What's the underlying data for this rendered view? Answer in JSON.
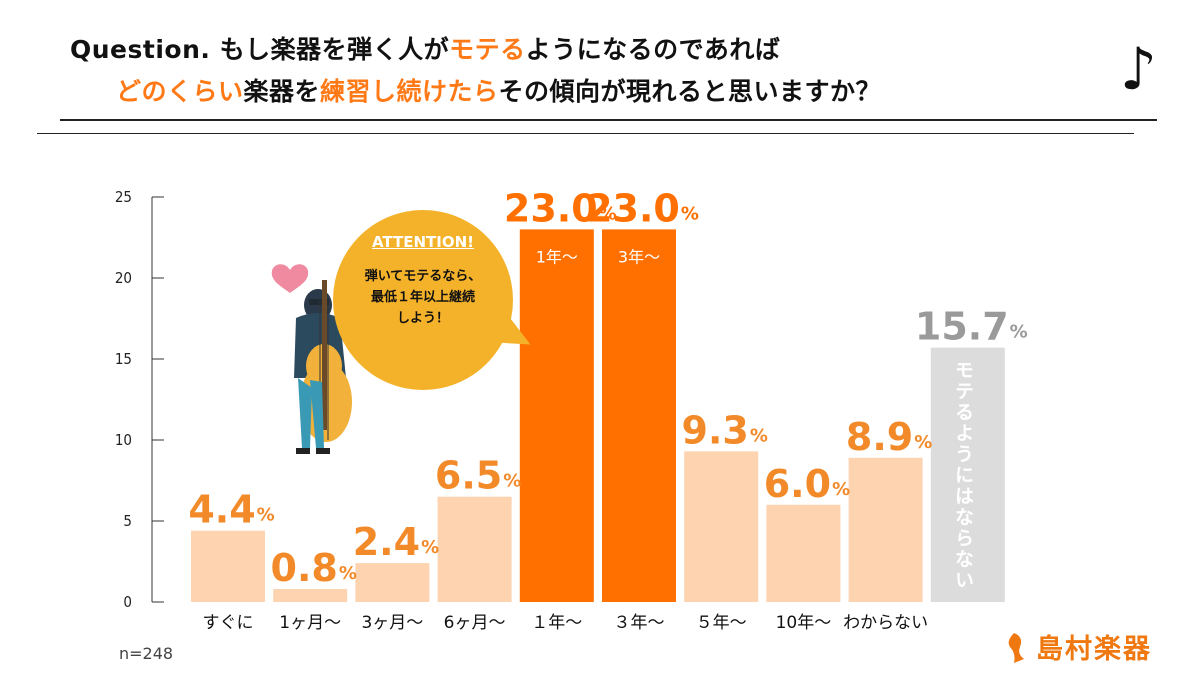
{
  "header": {
    "line1_prefix": "Question.",
    "line1_a": "もし楽器を弾く人が",
    "line1_b": "モテる",
    "line1_c": "ようになるのであれば",
    "line2_a": "どのくらい",
    "line2_b": "楽器を",
    "line2_c": "練習し続けたら",
    "line2_d": "その傾向が現れると思いますか？",
    "note_symbol": "♪"
  },
  "callout": {
    "heading": "ATTENTION!",
    "line1": "弾いてモテるなら、",
    "line2": "最低１年以上継続",
    "line3": "しよう！"
  },
  "footer": {
    "sample_size": "n=248",
    "brand": "島村楽器"
  },
  "colors": {
    "accent": "#ff7a17",
    "highlight_bar": "#ff7000",
    "light_bar": "#fdd3b0",
    "gray_bar": "#dcdcdc",
    "value_text": "#f28a2a",
    "gray_text": "#9a9a9a",
    "bubble": "#f4b22a"
  },
  "chart_data": {
    "type": "bar",
    "title": "どのくらい楽器を練習し続けたらその傾向が現れると思いますか？",
    "categories": [
      "すぐに",
      "1ヶ月〜",
      "3ヶ月〜",
      "6ヶ月〜",
      "１年〜",
      "３年〜",
      "５年〜",
      "10年〜",
      "わからない",
      "モテるようにはならない"
    ],
    "values": [
      4.4,
      0.8,
      2.4,
      6.5,
      23.0,
      23.0,
      9.3,
      6.0,
      8.9,
      15.7
    ],
    "value_labels": [
      "4.4",
      "0.8",
      "2.4",
      "6.5",
      "23.0",
      "23.0",
      "9.3",
      "6.0",
      "8.9",
      "15.7"
    ],
    "percent_sign": "%",
    "bar_styles": [
      "light",
      "light",
      "light",
      "light",
      "highlight",
      "highlight",
      "light",
      "light",
      "light",
      "gray"
    ],
    "in_bar_labels": [
      "",
      "",
      "",
      "",
      "1年〜",
      "3年〜",
      "",
      "",
      "",
      "モテるようにはならない"
    ],
    "show_x_label": [
      true,
      true,
      true,
      true,
      true,
      true,
      true,
      true,
      true,
      false
    ],
    "yticks": [
      0,
      5,
      10,
      15,
      20,
      25
    ],
    "ylim": [
      0,
      25
    ],
    "xlabel": "",
    "ylabel": ""
  }
}
